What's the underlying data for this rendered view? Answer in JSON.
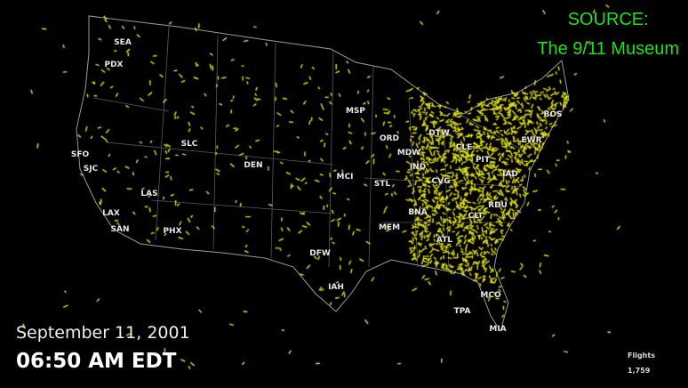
{
  "source": {
    "line1": "SOURCE:",
    "line2": "The 9/11 Museum"
  },
  "date": "September 11, 2001",
  "time": "06:50 AM EDT",
  "counter": {
    "label": "Flights",
    "value": "1,759"
  },
  "airports": [
    "SEA",
    "PDX",
    "SFO",
    "SJC",
    "LAS",
    "LAX",
    "SAN",
    "PHX",
    "SLC",
    "DEN",
    "MCI",
    "STL",
    "MSP",
    "ORD",
    "MDW",
    "DTW",
    "CLE",
    "PIT",
    "IND",
    "CVG",
    "BNA",
    "MEM",
    "ATL",
    "CLT",
    "RDU",
    "IAD",
    "EWR",
    "BOS",
    "DFW",
    "IAH",
    "MCO",
    "TPA",
    "MIA"
  ],
  "colors": {
    "background": "#000000",
    "flights": "#e6e619",
    "borders": "#9a9a9a",
    "source_text": "#1fe01f"
  }
}
